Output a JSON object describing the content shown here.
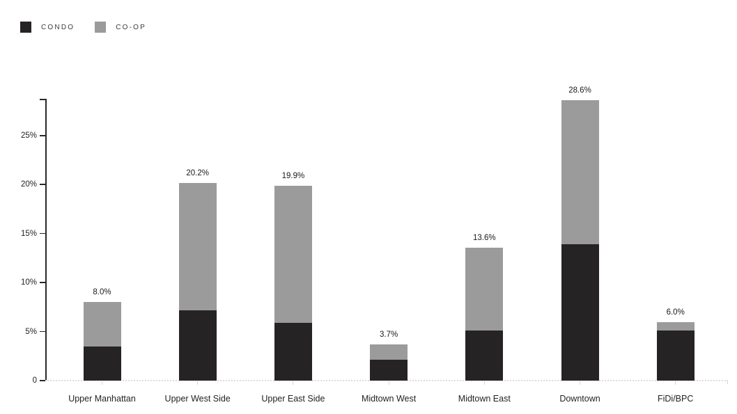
{
  "chart_data": {
    "type": "bar",
    "stacked": true,
    "title": "",
    "xlabel": "",
    "ylabel": "",
    "categories": [
      "Upper Manhattan",
      "Upper West Side",
      "Upper East Side",
      "Midtown West",
      "Midtown East",
      "Downtown",
      "FiDi/BPC"
    ],
    "series": [
      {
        "name": "CONDO",
        "color": "#262324",
        "values": [
          3.5,
          7.2,
          5.9,
          2.1,
          5.1,
          13.9,
          5.1
        ]
      },
      {
        "name": "CO-OP",
        "color": "#9c9b9b",
        "values": [
          4.5,
          13.0,
          14.0,
          1.6,
          8.5,
          14.7,
          0.9
        ]
      }
    ],
    "totals": [
      8.0,
      20.2,
      19.9,
      3.7,
      13.6,
      28.6,
      6.0
    ],
    "total_labels": [
      "8.0%",
      "20.2%",
      "19.9%",
      "3.7%",
      "13.6%",
      "28.6%",
      "6.0%"
    ],
    "yticks": [
      {
        "label": "0",
        "value": 0
      },
      {
        "label": "5%",
        "value": 5
      },
      {
        "label": "10%",
        "value": 10
      },
      {
        "label": "15%",
        "value": 15
      },
      {
        "label": "20%",
        "value": 20
      },
      {
        "label": "25%",
        "value": 25
      }
    ],
    "ylim": [
      0,
      28.8
    ],
    "grid": false,
    "legend_position": "top-left",
    "colors": {
      "background": "#ffffff",
      "axis": "#27282a",
      "baseline_dotted": "#dcdcdc",
      "value_label": "#19191a",
      "category_label": "#232323",
      "legend_label": "#3d393a"
    }
  }
}
